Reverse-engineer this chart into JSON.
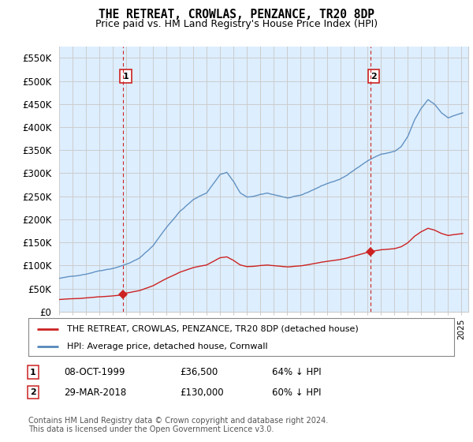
{
  "title": "THE RETREAT, CROWLAS, PENZANCE, TR20 8DP",
  "subtitle": "Price paid vs. HM Land Registry's House Price Index (HPI)",
  "ylabel_ticks": [
    "£0",
    "£50K",
    "£100K",
    "£150K",
    "£200K",
    "£250K",
    "£300K",
    "£350K",
    "£400K",
    "£450K",
    "£500K",
    "£550K"
  ],
  "ytick_values": [
    0,
    50000,
    100000,
    150000,
    200000,
    250000,
    300000,
    350000,
    400000,
    450000,
    500000,
    550000
  ],
  "ylim": [
    0,
    575000
  ],
  "xlim_start": 1995.0,
  "xlim_end": 2025.5,
  "sale1_x": 1999.77,
  "sale1_y": 36500,
  "sale1_label": "1",
  "sale1_date": "08-OCT-1999",
  "sale1_price": "£36,500",
  "sale1_hpi": "64% ↓ HPI",
  "sale2_x": 2018.24,
  "sale2_y": 130000,
  "sale2_label": "2",
  "sale2_date": "29-MAR-2018",
  "sale2_price": "£130,000",
  "sale2_hpi": "60% ↓ HPI",
  "hpi_color": "#5588bb",
  "sale_color": "#cc2222",
  "vline_color": "#cc2222",
  "chart_bg_color": "#ddeeff",
  "legend_label_sale": "THE RETREAT, CROWLAS, PENZANCE, TR20 8DP (detached house)",
  "legend_label_hpi": "HPI: Average price, detached house, Cornwall",
  "footnote": "Contains HM Land Registry data © Crown copyright and database right 2024.\nThis data is licensed under the Open Government Licence v3.0.",
  "background_color": "#ffffff",
  "grid_color": "#cccccc"
}
